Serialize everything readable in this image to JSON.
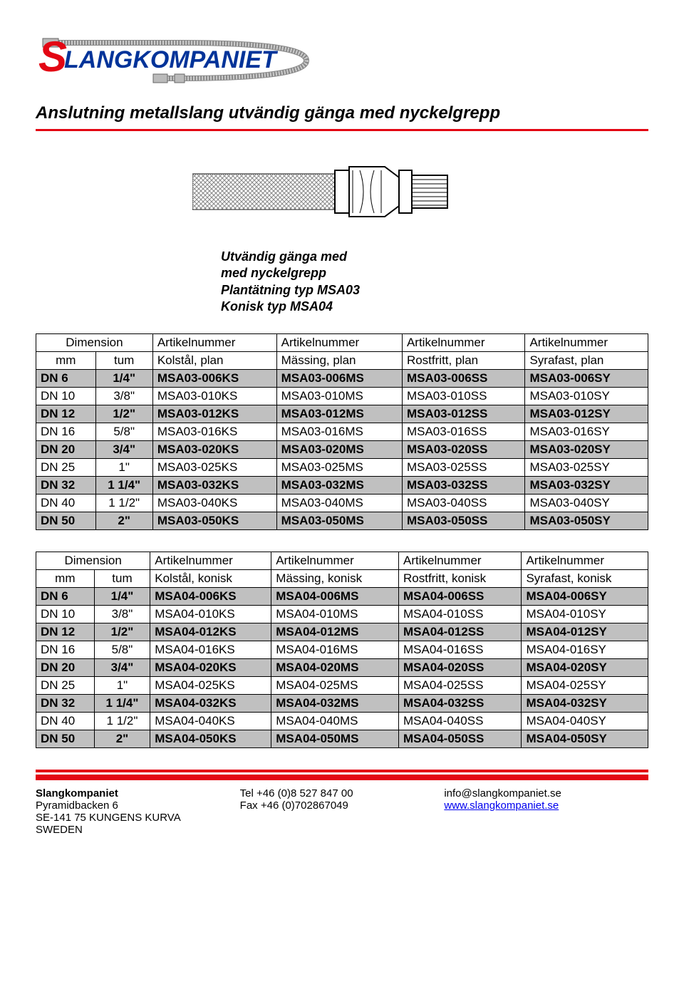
{
  "logo_text": "LANGKOMPANIET",
  "logo_s": "S",
  "colors": {
    "red": "#e30613",
    "blue": "#003399",
    "shade": "#c0c0c0",
    "border": "#000000",
    "bg": "#ffffff",
    "link": "#0000ee"
  },
  "title": "Anslutning metallslang utvändig gänga med nyckelgrepp",
  "desc_lines": [
    "Utvändig gänga med",
    "med nyckelgrepp",
    "Plantätning typ MSA03",
    "Konisk typ MSA04"
  ],
  "table1": {
    "headers_row1": [
      "Dimension",
      "",
      "Artikelnummer",
      "Artikelnummer",
      "Artikelnummer",
      "Artikelnummer"
    ],
    "headers_row2": [
      "mm",
      "tum",
      "Kolstål, plan",
      "Mässing, plan",
      "Rostfritt, plan",
      "Syrafast, plan"
    ],
    "rows": [
      {
        "shaded": true,
        "c": [
          "DN 6",
          "1/4\"",
          "MSA03-006KS",
          "MSA03-006MS",
          "MSA03-006SS",
          "MSA03-006SY"
        ]
      },
      {
        "shaded": false,
        "c": [
          "DN 10",
          "3/8\"",
          "MSA03-010KS",
          "MSA03-010MS",
          "MSA03-010SS",
          "MSA03-010SY"
        ]
      },
      {
        "shaded": true,
        "c": [
          "DN 12",
          "1/2\"",
          "MSA03-012KS",
          "MSA03-012MS",
          "MSA03-012SS",
          "MSA03-012SY"
        ]
      },
      {
        "shaded": false,
        "c": [
          "DN 16",
          "5/8\"",
          "MSA03-016KS",
          "MSA03-016MS",
          "MSA03-016SS",
          "MSA03-016SY"
        ]
      },
      {
        "shaded": true,
        "c": [
          "DN 20",
          "3/4\"",
          "MSA03-020KS",
          "MSA03-020MS",
          "MSA03-020SS",
          "MSA03-020SY"
        ]
      },
      {
        "shaded": false,
        "c": [
          "DN 25",
          "1\"",
          "MSA03-025KS",
          "MSA03-025MS",
          "MSA03-025SS",
          "MSA03-025SY"
        ]
      },
      {
        "shaded": true,
        "c": [
          "DN 32",
          "1 1/4\"",
          "MSA03-032KS",
          "MSA03-032MS",
          "MSA03-032SS",
          "MSA03-032SY"
        ]
      },
      {
        "shaded": false,
        "c": [
          "DN 40",
          "1 1/2\"",
          "MSA03-040KS",
          "MSA03-040MS",
          "MSA03-040SS",
          "MSA03-040SY"
        ]
      },
      {
        "shaded": true,
        "c": [
          "DN 50",
          "2\"",
          "MSA03-050KS",
          "MSA03-050MS",
          "MSA03-050SS",
          "MSA03-050SY"
        ]
      }
    ]
  },
  "table2": {
    "headers_row1": [
      "Dimension",
      "",
      "Artikelnummer",
      "Artikelnummer",
      "Artikelnummer",
      "Artikelnummer"
    ],
    "headers_row2": [
      "mm",
      "tum",
      "Kolstål, konisk",
      "Mässing, konisk",
      "Rostfritt, konisk",
      "Syrafast, konisk"
    ],
    "rows": [
      {
        "shaded": true,
        "c": [
          "DN 6",
          "1/4\"",
          "MSA04-006KS",
          "MSA04-006MS",
          "MSA04-006SS",
          "MSA04-006SY"
        ]
      },
      {
        "shaded": false,
        "c": [
          "DN 10",
          "3/8\"",
          "MSA04-010KS",
          "MSA04-010MS",
          "MSA04-010SS",
          "MSA04-010SY"
        ]
      },
      {
        "shaded": true,
        "c": [
          "DN 12",
          "1/2\"",
          "MSA04-012KS",
          "MSA04-012MS",
          "MSA04-012SS",
          "MSA04-012SY"
        ]
      },
      {
        "shaded": false,
        "c": [
          "DN 16",
          "5/8\"",
          "MSA04-016KS",
          "MSA04-016MS",
          "MSA04-016SS",
          "MSA04-016SY"
        ]
      },
      {
        "shaded": true,
        "c": [
          "DN 20",
          "3/4\"",
          "MSA04-020KS",
          "MSA04-020MS",
          "MSA04-020SS",
          "MSA04-020SY"
        ]
      },
      {
        "shaded": false,
        "c": [
          "DN 25",
          "1\"",
          "MSA04-025KS",
          "MSA04-025MS",
          "MSA04-025SS",
          "MSA04-025SY"
        ]
      },
      {
        "shaded": true,
        "c": [
          "DN 32",
          "1 1/4\"",
          "MSA04-032KS",
          "MSA04-032MS",
          "MSA04-032SS",
          "MSA04-032SY"
        ]
      },
      {
        "shaded": false,
        "c": [
          "DN 40",
          "1 1/2\"",
          "MSA04-040KS",
          "MSA04-040MS",
          "MSA04-040SS",
          "MSA04-040SY"
        ]
      },
      {
        "shaded": true,
        "c": [
          "DN 50",
          "2\"",
          "MSA04-050KS",
          "MSA04-050MS",
          "MSA04-050SS",
          "MSA04-050SY"
        ]
      }
    ]
  },
  "footer": {
    "col1": [
      "Slangkompaniet",
      "Pyramidbacken 6",
      "SE-141 75  KUNGENS KURVA",
      "SWEDEN"
    ],
    "col2": [
      "Tel +46 (0)8 527 847 00",
      "Fax +46 (0)702867049"
    ],
    "col3": [
      "info@slangkompaniet.se",
      "www.slangkompaniet.se"
    ]
  }
}
